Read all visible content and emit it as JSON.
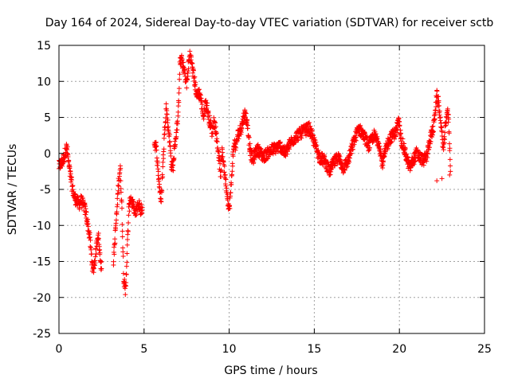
{
  "chart_data": {
    "type": "scatter",
    "title": "Day 164 of 2024, Sidereal Day-to-day VTEC variation (SDTVAR) for receiver sctb",
    "xlabel": "GPS time / hours",
    "ylabel": "SDTVAR / TECUs",
    "xlim": [
      0,
      25
    ],
    "ylim": [
      -25,
      15
    ],
    "x_ticks": [
      0,
      5,
      10,
      15,
      20,
      25
    ],
    "y_ticks": [
      -25,
      -20,
      -15,
      -10,
      -5,
      0,
      5,
      10,
      15
    ],
    "grid": true,
    "marker": "+",
    "marker_color": "#ff0000",
    "series": [
      {
        "name": "SDTVAR",
        "trace": [
          [
            0.0,
            -1.8
          ],
          [
            0.1,
            -1.5
          ],
          [
            0.2,
            -1.2
          ],
          [
            0.3,
            -0.5
          ],
          [
            0.4,
            0.5
          ],
          [
            0.45,
            0.8
          ],
          [
            0.5,
            0.2
          ],
          [
            0.55,
            -1.0
          ],
          [
            0.6,
            -2.0
          ],
          [
            0.7,
            -3.5
          ],
          [
            0.8,
            -5.0
          ],
          [
            0.9,
            -6.0
          ],
          [
            1.0,
            -6.5
          ],
          [
            1.1,
            -6.8
          ],
          [
            1.2,
            -7.0
          ],
          [
            1.3,
            -6.5
          ],
          [
            1.4,
            -7.0
          ],
          [
            1.5,
            -7.5
          ],
          [
            1.6,
            -8.5
          ],
          [
            1.7,
            -10.0
          ],
          [
            1.8,
            -11.5
          ],
          [
            1.9,
            -14.0
          ],
          [
            2.0,
            -16.5
          ],
          [
            2.1,
            -15.0
          ],
          [
            2.2,
            -13.0
          ],
          [
            2.3,
            -11.0
          ],
          [
            2.4,
            -14.0
          ],
          [
            2.5,
            -16.0
          ],
          [
            3.2,
            -15.0
          ],
          [
            3.4,
            -8.0
          ],
          [
            3.5,
            -4.0
          ],
          [
            3.6,
            -2.0
          ],
          [
            3.7,
            -8.0
          ],
          [
            3.8,
            -17.0
          ],
          [
            3.9,
            -19.5
          ],
          [
            4.0,
            -14.0
          ],
          [
            4.1,
            -8.0
          ],
          [
            4.2,
            -6.0
          ],
          [
            4.3,
            -7.0
          ],
          [
            4.4,
            -7.5
          ],
          [
            4.5,
            -8.5
          ],
          [
            4.6,
            -7.5
          ],
          [
            4.7,
            -7.0
          ],
          [
            4.8,
            -8.0
          ],
          [
            4.9,
            -7.5
          ],
          [
            5.6,
            1.5
          ],
          [
            5.7,
            1.0
          ],
          [
            6.0,
            -7.0
          ],
          [
            6.1,
            -2.0
          ],
          [
            6.2,
            3.0
          ],
          [
            6.3,
            6.5
          ],
          [
            6.4,
            4.0
          ],
          [
            6.5,
            2.0
          ],
          [
            6.6,
            -1.5
          ],
          [
            6.7,
            -2.0
          ],
          [
            6.8,
            1.0
          ],
          [
            6.9,
            3.0
          ],
          [
            7.0,
            5.0
          ],
          [
            7.1,
            12.5
          ],
          [
            7.2,
            13.0
          ],
          [
            7.3,
            12.0
          ],
          [
            7.4,
            11.0
          ],
          [
            7.5,
            9.5
          ],
          [
            7.6,
            12.0
          ],
          [
            7.7,
            14.0
          ],
          [
            7.8,
            12.5
          ],
          [
            7.9,
            11.0
          ],
          [
            8.0,
            9.5
          ],
          [
            8.1,
            8.0
          ],
          [
            8.2,
            8.5
          ],
          [
            8.3,
            8.0
          ],
          [
            8.4,
            6.5
          ],
          [
            8.5,
            5.0
          ],
          [
            8.6,
            7.0
          ],
          [
            8.7,
            6.5
          ],
          [
            8.8,
            5.0
          ],
          [
            8.9,
            4.0
          ],
          [
            9.0,
            3.0
          ],
          [
            9.1,
            4.5
          ],
          [
            9.2,
            3.5
          ],
          [
            9.3,
            1.5
          ],
          [
            9.4,
            -0.5
          ],
          [
            9.5,
            -3.0
          ],
          [
            9.6,
            0.5
          ],
          [
            9.7,
            -2.0
          ],
          [
            9.8,
            -4.0
          ],
          [
            9.9,
            -6.0
          ],
          [
            10.0,
            -8.0
          ],
          [
            10.1,
            -5.0
          ],
          [
            10.2,
            -1.0
          ],
          [
            10.3,
            1.5
          ],
          [
            10.4,
            1.0
          ],
          [
            10.5,
            2.5
          ],
          [
            10.6,
            3.0
          ],
          [
            10.7,
            3.5
          ],
          [
            10.8,
            4.5
          ],
          [
            10.9,
            5.5
          ],
          [
            11.0,
            5.0
          ],
          [
            11.1,
            3.5
          ],
          [
            11.2,
            1.0
          ],
          [
            11.3,
            -0.5
          ],
          [
            11.4,
            -1.0
          ],
          [
            11.5,
            0.0
          ],
          [
            11.7,
            0.5
          ],
          [
            12.0,
            -0.5
          ],
          [
            12.5,
            0.5
          ],
          [
            13.0,
            1.0
          ],
          [
            13.3,
            0.0
          ],
          [
            13.6,
            1.5
          ],
          [
            14.0,
            2.5
          ],
          [
            14.3,
            3.0
          ],
          [
            14.7,
            3.5
          ],
          [
            15.0,
            1.5
          ],
          [
            15.3,
            -0.5
          ],
          [
            15.6,
            -1.0
          ],
          [
            15.9,
            -2.5
          ],
          [
            16.1,
            -1.5
          ],
          [
            16.4,
            -0.5
          ],
          [
            16.7,
            -2.0
          ],
          [
            17.0,
            -1.0
          ],
          [
            17.3,
            1.5
          ],
          [
            17.6,
            3.5
          ],
          [
            17.9,
            2.5
          ],
          [
            18.2,
            1.0
          ],
          [
            18.5,
            2.5
          ],
          [
            18.8,
            1.5
          ],
          [
            19.0,
            -1.5
          ],
          [
            19.2,
            0.5
          ],
          [
            19.4,
            2.0
          ],
          [
            19.6,
            2.5
          ],
          [
            19.8,
            3.0
          ],
          [
            19.95,
            4.5
          ],
          [
            20.1,
            2.0
          ],
          [
            20.6,
            -2.0
          ],
          [
            20.8,
            -1.0
          ],
          [
            21.0,
            0.0
          ],
          [
            21.2,
            -0.5
          ],
          [
            21.4,
            -1.0
          ],
          [
            21.6,
            -0.5
          ],
          [
            21.8,
            2.0
          ],
          [
            22.0,
            3.5
          ],
          [
            22.1,
            6.0
          ],
          [
            22.2,
            8.0
          ],
          [
            22.3,
            7.0
          ],
          [
            22.4,
            5.0
          ],
          [
            22.5,
            2.5
          ],
          [
            22.6,
            0.5
          ],
          [
            22.7,
            3.5
          ],
          [
            22.8,
            6.0
          ],
          [
            22.9,
            4.5
          ],
          [
            23.0,
            -2.5
          ],
          [
            22.95,
            -3.0
          ],
          [
            22.5,
            -3.5
          ],
          [
            22.2,
            -3.8
          ]
        ]
      }
    ]
  }
}
